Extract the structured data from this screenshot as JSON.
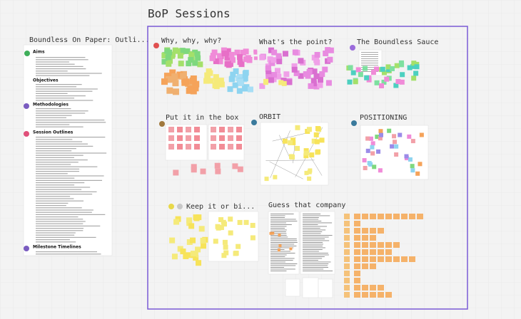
{
  "board": {
    "title": "BoP Sessions",
    "document": {
      "title": "Boundless On Paper: Outli...",
      "sections": [
        "Aims",
        "Objectives",
        "Methodologies",
        "Session Outlines",
        "Milestone Timelines"
      ]
    },
    "frames": [
      {
        "title": "Why, why, why?"
      },
      {
        "title": "What's the point?"
      },
      {
        "title": "The Boundless Sauce"
      },
      {
        "title": "Put it in the box"
      },
      {
        "title": "ORBIT"
      },
      {
        "title": "POSITIONING"
      },
      {
        "title": "Keep it or bi..."
      },
      {
        "title": "Guess that company"
      }
    ]
  }
}
